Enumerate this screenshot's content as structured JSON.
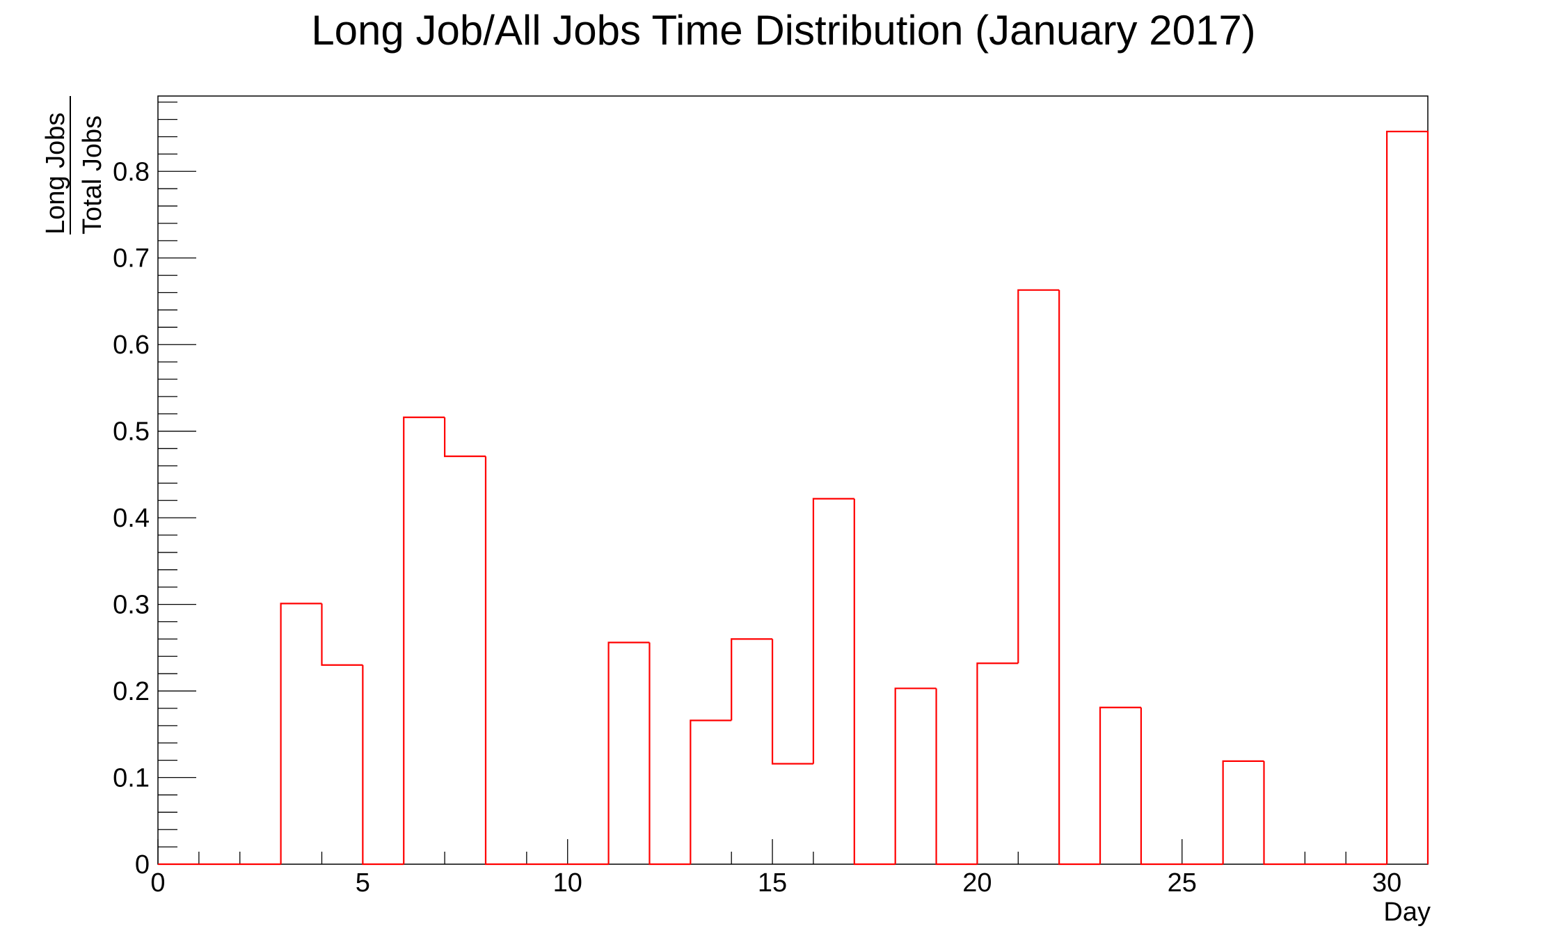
{
  "chart_data": {
    "type": "bar",
    "style": "step-histogram",
    "title": "Long Job/All Jobs Time Distribution (January 2017)",
    "xlabel": "Day",
    "ylabel": {
      "numerator": "Long Jobs",
      "denominator": "Total Jobs"
    },
    "xlim": [
      0,
      31
    ],
    "ylim": [
      0,
      0.887
    ],
    "x_ticks": [
      "0",
      "5",
      "10",
      "15",
      "20",
      "25",
      "30"
    ],
    "y_ticks": [
      "0",
      "0.1",
      "0.2",
      "0.3",
      "0.4",
      "0.5",
      "0.6",
      "0.7",
      "0.8"
    ],
    "grid": false,
    "line_color": "#ff0000",
    "bin_width": 1,
    "bin_edges_start": 0,
    "values": [
      0,
      0,
      0,
      0.301,
      0.23,
      0,
      0.516,
      0.471,
      0,
      0,
      0,
      0.256,
      0,
      0.166,
      0.26,
      0.116,
      0.422,
      0,
      0.203,
      0,
      0.232,
      0.663,
      0,
      0.181,
      0,
      0,
      0.119,
      0,
      0,
      0,
      0.846
    ]
  }
}
